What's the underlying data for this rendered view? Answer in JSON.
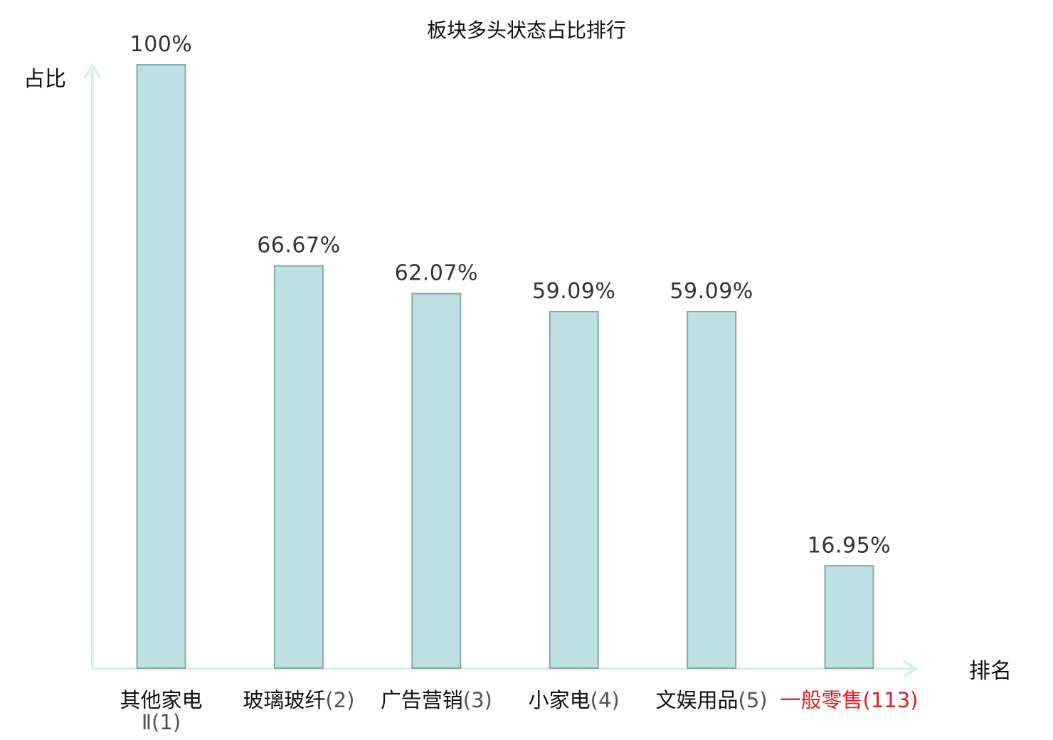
{
  "chart_data": {
    "type": "bar",
    "title": "板块多头状态占比排行",
    "ylabel": "占比",
    "xlabel": "排名",
    "ylim": [
      0,
      100
    ],
    "grid": false,
    "categories": [
      "其他家电Ⅱ",
      "玻璃玻纤",
      "广告营销",
      "小家电",
      "文娱用品",
      "一般零售"
    ],
    "ranks": [
      "(1)",
      "(2)",
      "(3)",
      "(4)",
      "(5)",
      "(113)"
    ],
    "values": [
      100,
      66.67,
      62.07,
      59.09,
      59.09,
      16.95
    ],
    "value_labels": [
      "100%",
      "66.67%",
      "62.07%",
      "59.09%",
      "59.09%",
      "16.95%"
    ],
    "highlight_index": 5,
    "colors": {
      "bar_fill": "#bde0e2",
      "bar_stroke": "#8aa9ab",
      "axis": "#dcf0ee",
      "highlight_text": "#e02020"
    }
  }
}
